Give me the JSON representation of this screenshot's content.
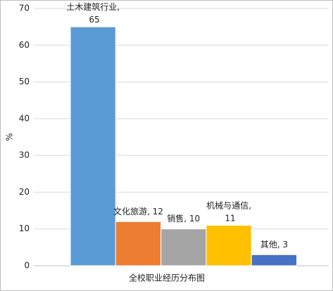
{
  "chart_data": {
    "type": "bar",
    "values": [
      65,
      12,
      10,
      11,
      3
    ],
    "value_labels": [
      "土木建筑行业, 65",
      "文化旅游, 12",
      "销售, 10",
      "机械与通信, 11",
      "其他, 3"
    ],
    "colors": [
      "#5b9bd5",
      "#ed7d31",
      "#a5a5a5",
      "#ffc000",
      "#4472c4"
    ],
    "x_label": "全校职业经历分布图",
    "y_label": "%",
    "ylim": [
      0,
      70
    ],
    "yticks": [
      0,
      10,
      20,
      30,
      40,
      50,
      60,
      70
    ],
    "grid": true
  }
}
